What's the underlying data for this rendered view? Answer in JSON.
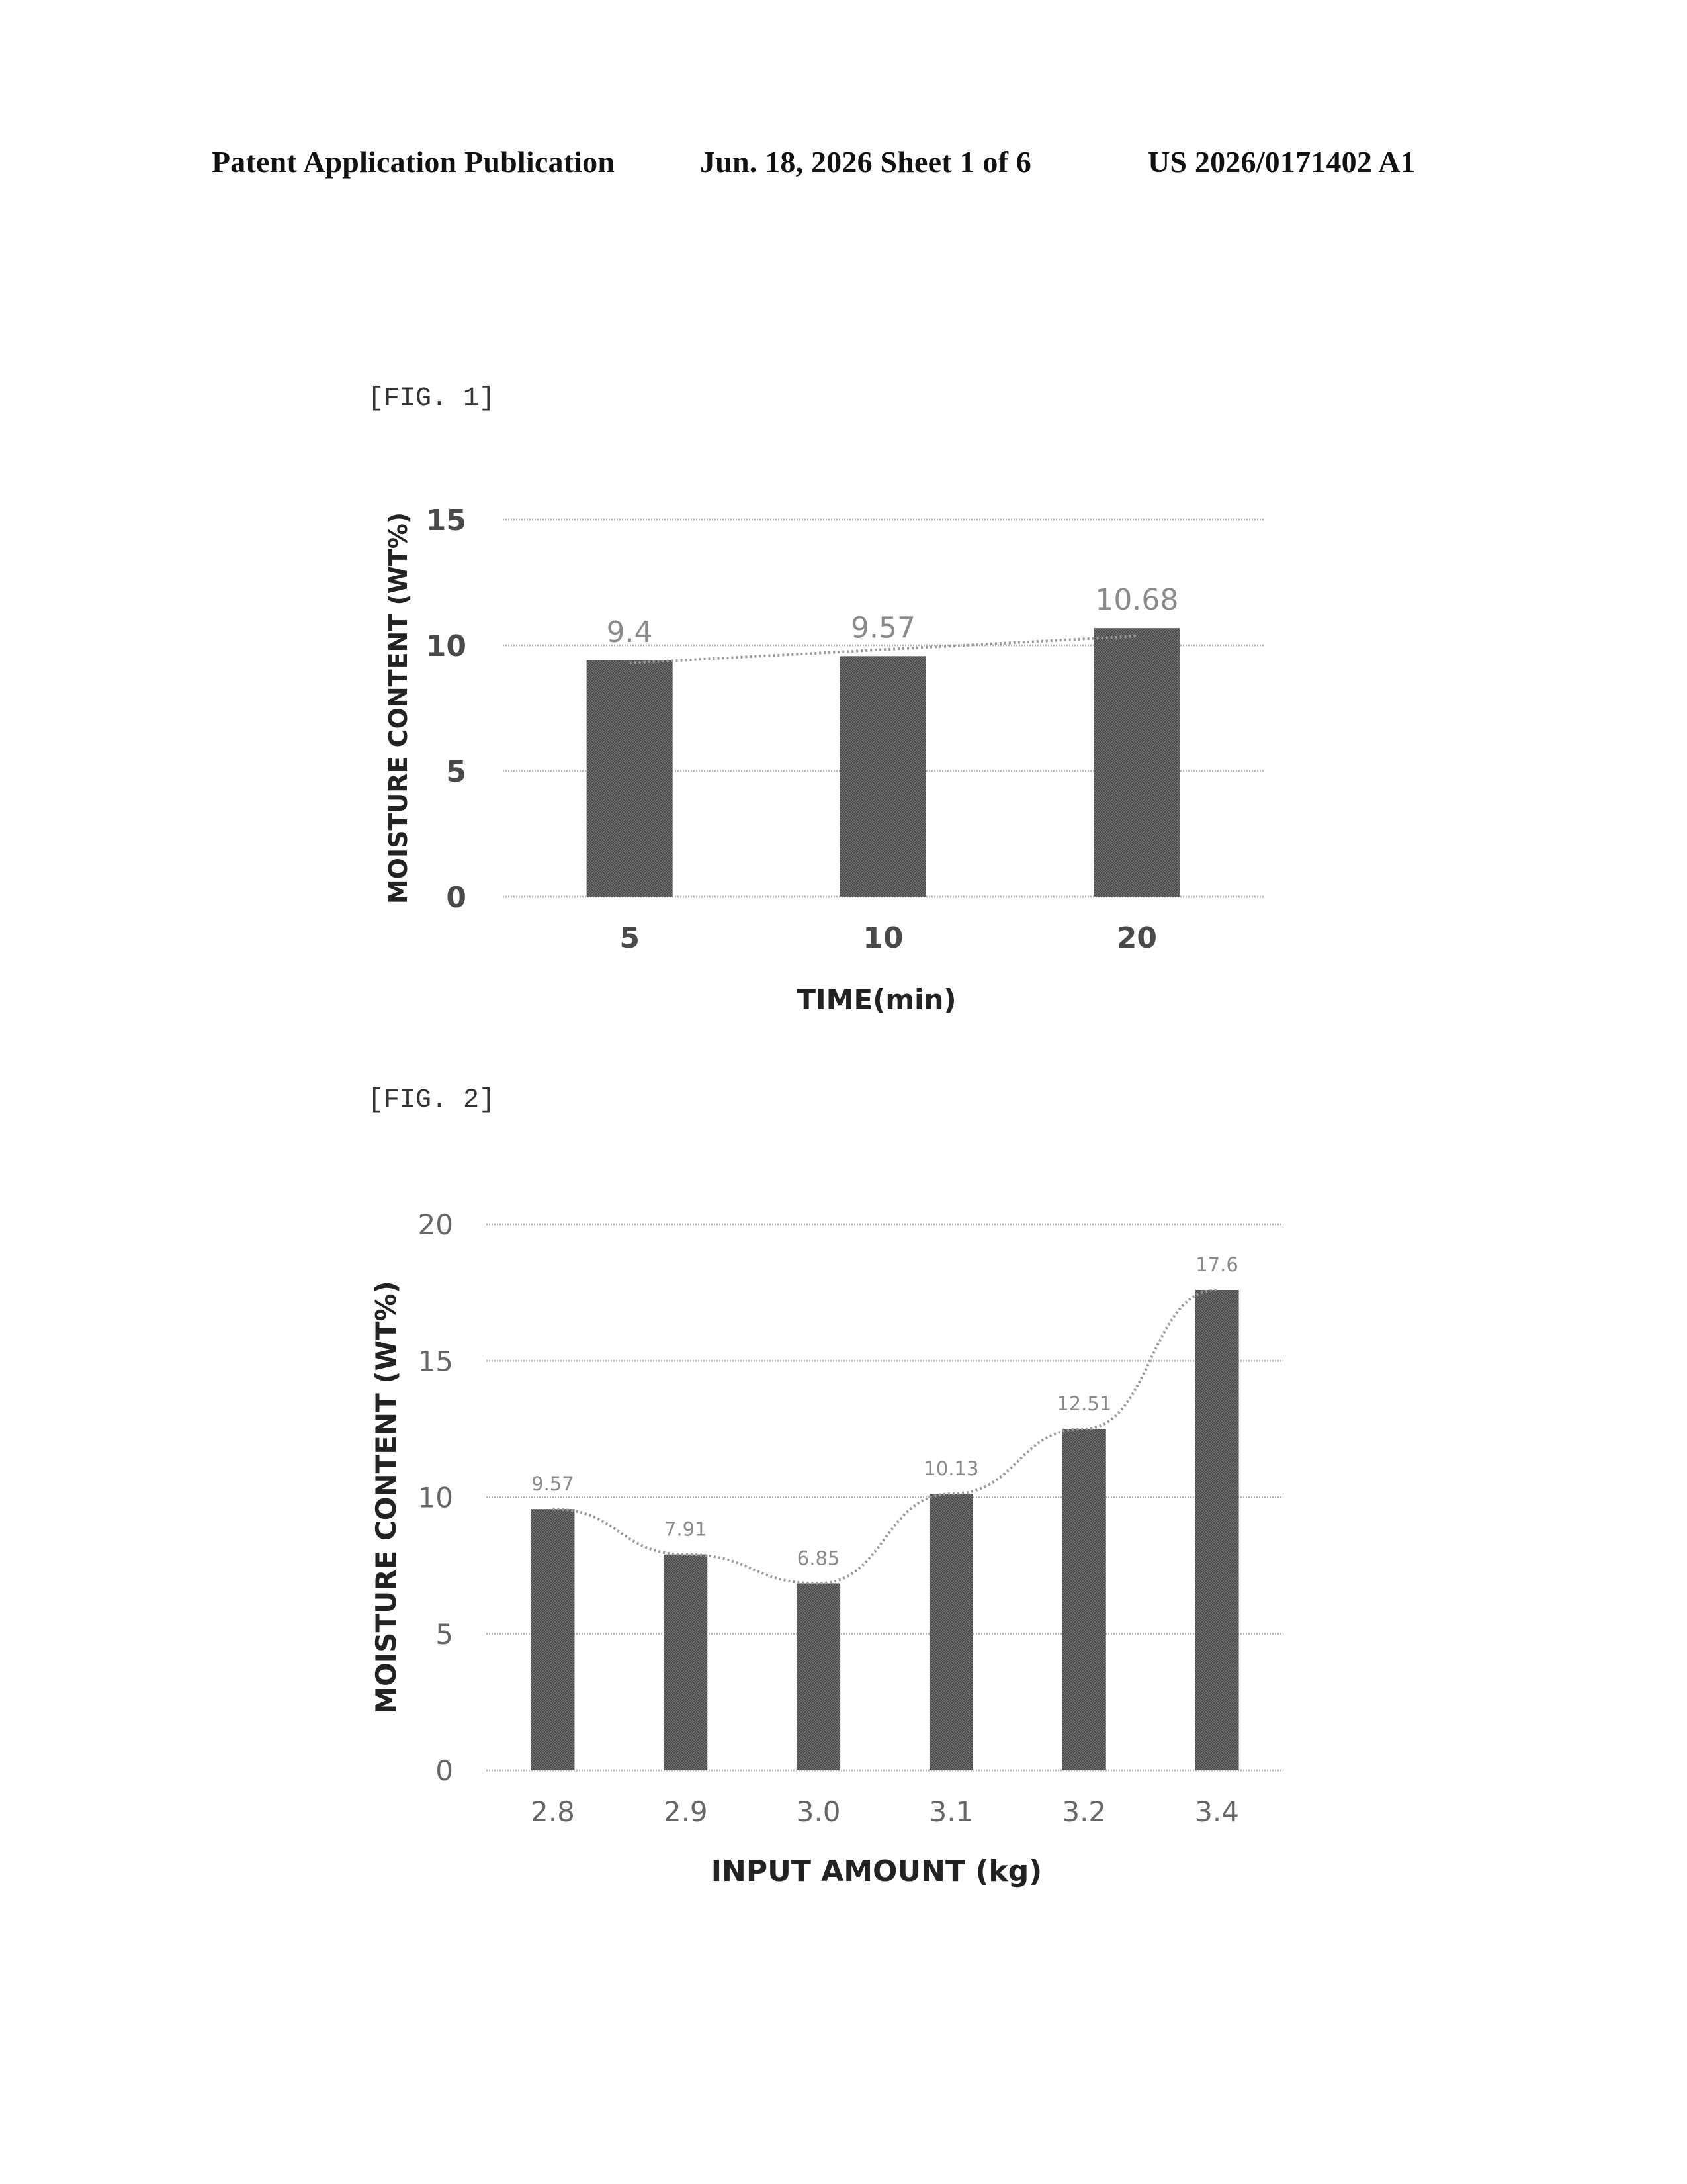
{
  "header": {
    "publication": "Patent Application Publication",
    "date_sheet": "Jun. 18, 2026  Sheet 1 of 6",
    "number": "US 2026/0171402 A1"
  },
  "figures": [
    {
      "label": "[FIG. 1]"
    },
    {
      "label": "[FIG. 2]"
    }
  ],
  "chart_data": [
    {
      "type": "bar",
      "title": "",
      "xlabel": "TIME(min)",
      "ylabel": "MOISTURE CONTENT (WT%)",
      "categories": [
        "5",
        "10",
        "20"
      ],
      "values": [
        9.4,
        9.57,
        10.68
      ],
      "value_labels": [
        "9.4",
        "9.57",
        "10.68"
      ],
      "yticks": [
        "0",
        "5",
        "10",
        "15"
      ],
      "ylim": [
        0,
        15
      ],
      "grid": true,
      "trendline": "dotted linear"
    },
    {
      "type": "bar",
      "title": "",
      "xlabel": "INPUT AMOUNT (kg)",
      "ylabel": "MOISTURE CONTENT (WT%)",
      "categories": [
        "2.8",
        "2.9",
        "3.0",
        "3.1",
        "3.2",
        "3.4"
      ],
      "values": [
        9.57,
        7.91,
        6.85,
        10.13,
        12.51,
        17.6
      ],
      "value_labels": [
        "9.57",
        "7.91",
        "6.85",
        "10.13",
        "12.51",
        "17.6"
      ],
      "yticks": [
        "0",
        "5",
        "10",
        "15",
        "20"
      ],
      "ylim": [
        0,
        20
      ],
      "grid": true,
      "trendline": "dotted polynomial"
    }
  ]
}
